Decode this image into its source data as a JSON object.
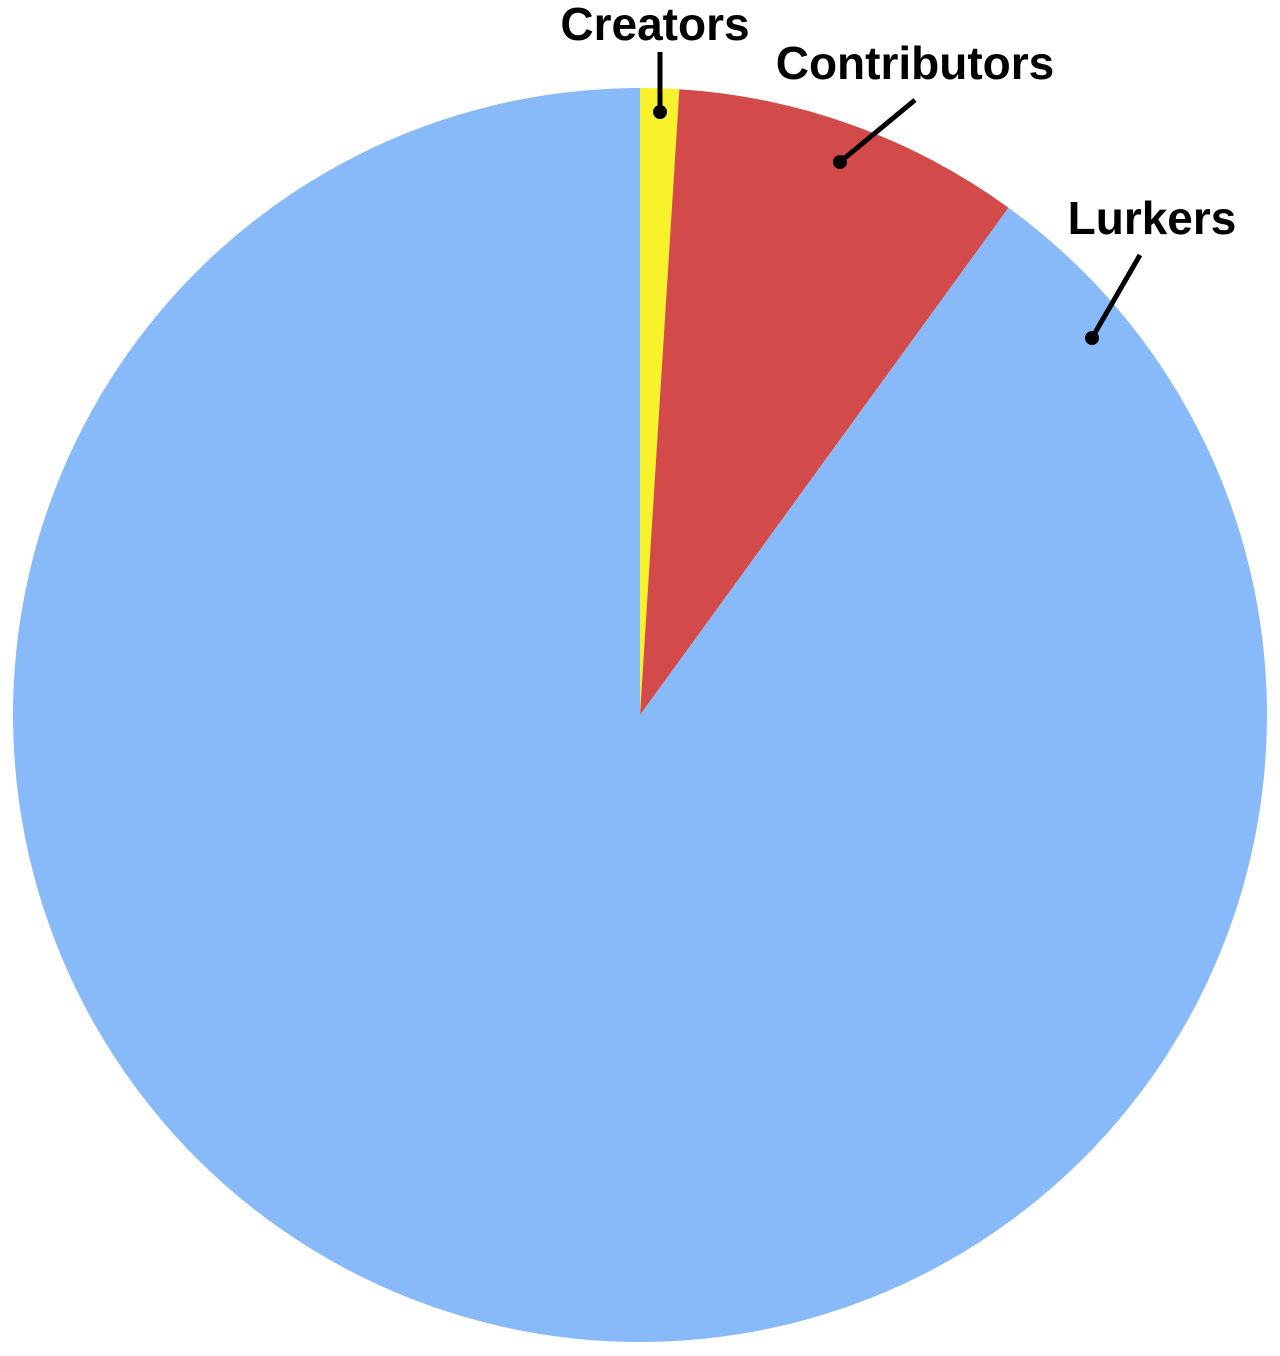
{
  "chart_data": {
    "type": "pie",
    "categories": [
      "Creators",
      "Contributors",
      "Lurkers"
    ],
    "values": [
      1,
      9,
      90
    ],
    "colors": [
      "#f7f22c",
      "#d24b4a",
      "#88b9f9"
    ]
  }
}
